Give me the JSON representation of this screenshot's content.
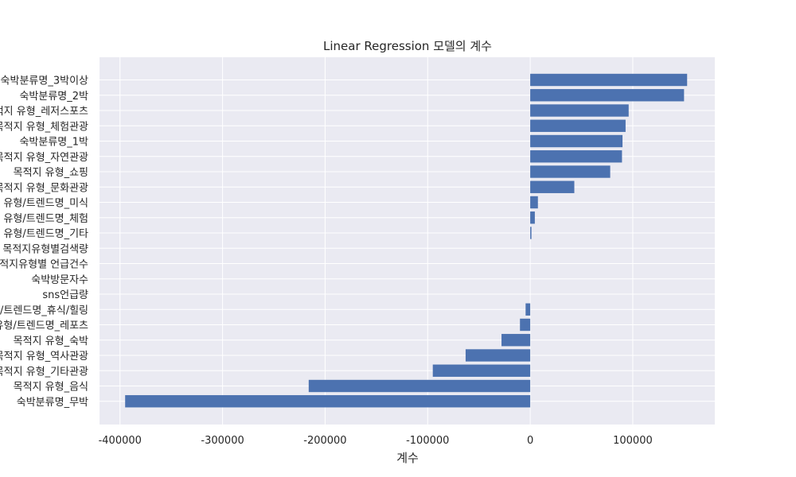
{
  "chart_data": {
    "type": "bar",
    "orientation": "horizontal",
    "title": "Linear Regression 모델의 계수",
    "xlabel": "계수",
    "ylabel": "",
    "xlim": [
      -420000,
      180000
    ],
    "xticks": [
      -400000,
      -300000,
      -200000,
      -100000,
      0,
      100000
    ],
    "xtick_labels": [
      "-400000",
      "-300000",
      "-200000",
      "-100000",
      "0",
      "100000"
    ],
    "grid": true,
    "bar_color": "#4c72b0",
    "background_color": "#eaeaf2",
    "categories": [
      "숙박분류명_3박이상",
      "숙박분류명_2박",
      "목적지 유형_레저스포츠",
      "목적지 유형_체험관광",
      "숙박분류명_1박",
      "목적지 유형_자연관광",
      "목적지 유형_쇼핑",
      "목적지 유형_문화관광",
      "목적지 유형/트렌드명_미식",
      "목적지 유형/트렌드명_체험",
      "목적지 유형/트렌드명_기타",
      "목적지유형별검색량",
      "목적지유형별 언급건수",
      "숙박방문자수",
      "sns언급량",
      "목적지 유형/트렌드명_휴식/힐링",
      "목적지 유형/트렌드명_레포츠",
      "목적지 유형_숙박",
      "목적지 유형_역사관광",
      "목적지 유형_기타관광",
      "목적지 유형_음식",
      "숙박분류명_무박"
    ],
    "values": [
      153000,
      150000,
      96000,
      93000,
      90000,
      89500,
      78000,
      43000,
      7500,
      4500,
      1200,
      0,
      0,
      0,
      0,
      -4500,
      -10000,
      -28000,
      -63000,
      -95000,
      -216000,
      -395000
    ]
  }
}
